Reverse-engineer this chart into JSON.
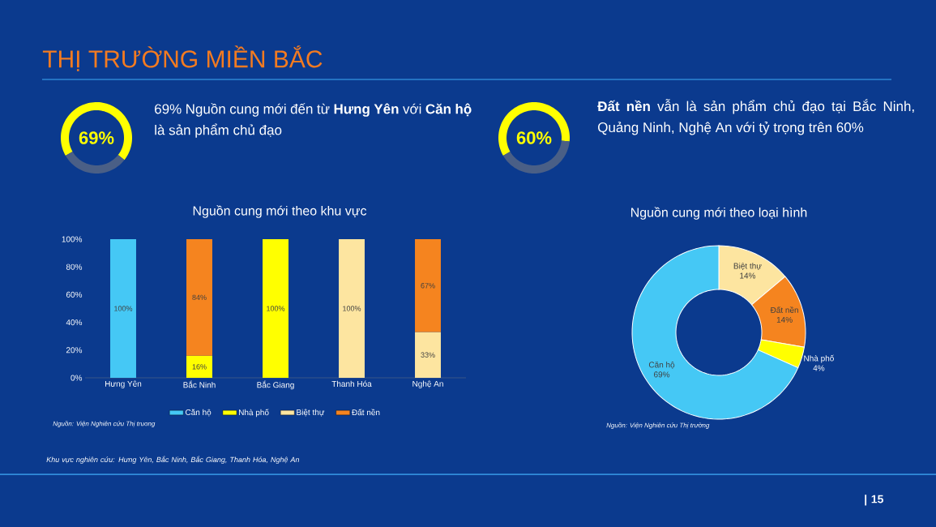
{
  "chart_data": [
    {
      "type": "other",
      "title": "THỊ TRƯỜNG MIỀN BẮC",
      "annotations": [
        "69% Nguồn cung mới đến từ **Hưng Yên** với **Căn hộ** là sản phẩm chủ đạo",
        "**Đất nền** vẫn là sản phẩm chủ đạo tại Bắc Ninh, Quảng Ninh, Nghệ An với tỷ trọng trên 60%",
        "Khu vực nghiên cứu: Hưng Yên, Bắc Ninh, Bắc Giang, Thanh Hóa, Nghệ An",
        "|   15"
      ]
    },
    {
      "type": "donut",
      "categories": [
        null,
        null
      ],
      "values": [
        69,
        31
      ],
      "colors": [
        "#ffff00",
        "#4a5f86"
      ],
      "annotations": [
        "69%"
      ]
    },
    {
      "type": "donut",
      "categories": [
        null,
        null
      ],
      "values": [
        60,
        40
      ],
      "colors": [
        "#ffff00",
        "#4a5f86"
      ],
      "annotations": [
        "60%"
      ]
    },
    {
      "type": "bar",
      "stacked": true,
      "title": "Nguồn cung mới theo khu vực",
      "categories": [
        "Hưng Yên",
        "Bắc Ninh",
        "Bắc Giang",
        "Thanh Hóa",
        "Nghệ An"
      ],
      "ylim": [
        0,
        100
      ],
      "yticks": [
        {
          "value": 0,
          "label": "0%"
        },
        {
          "value": 20,
          "label": "20%"
        },
        {
          "value": 40,
          "label": "40%"
        },
        {
          "value": 60,
          "label": "60%"
        },
        {
          "value": 80,
          "label": "80%"
        },
        {
          "value": 100,
          "label": "100%"
        }
      ],
      "legend": "bottom",
      "series": [
        {
          "name": "Căn hộ",
          "color": "#45c8f5",
          "values": [
            100,
            null,
            null,
            null,
            null
          ],
          "value_labels": [
            "100%",
            null,
            null,
            null,
            null
          ]
        },
        {
          "name": "Nhà phố",
          "color": "#ffff00",
          "values": [
            null,
            16,
            100,
            null,
            null
          ],
          "value_labels": [
            null,
            "16%",
            "100%",
            null,
            null
          ]
        },
        {
          "name": "Biệt thự",
          "color": "#fde5a0",
          "values": [
            null,
            null,
            null,
            100,
            33
          ],
          "value_labels": [
            null,
            null,
            null,
            "100%",
            "33%"
          ]
        },
        {
          "name": "Đất nền",
          "color": "#f5841f",
          "values": [
            null,
            84,
            null,
            null,
            67
          ],
          "value_labels": [
            null,
            "84%",
            null,
            null,
            "67%"
          ]
        }
      ],
      "annotations": [
        "Nguồn: Viện Nghiên cứu Thị truong"
      ]
    },
    {
      "type": "donut",
      "title": "Nguồn cung mới theo loại hình",
      "categories": [
        "Biệt thự",
        "Đất nền",
        "Nhà phố",
        "Căn hộ"
      ],
      "values": [
        14,
        14,
        4,
        69
      ],
      "colors": [
        "#fde5a0",
        "#f5841f",
        "#ffff00",
        "#45c8f5"
      ],
      "value_labels": [
        "14%",
        "14%",
        "4%",
        "69%"
      ],
      "annotations": [
        "Nguồn: Viện Nghiên cứu Thị trường"
      ]
    }
  ]
}
